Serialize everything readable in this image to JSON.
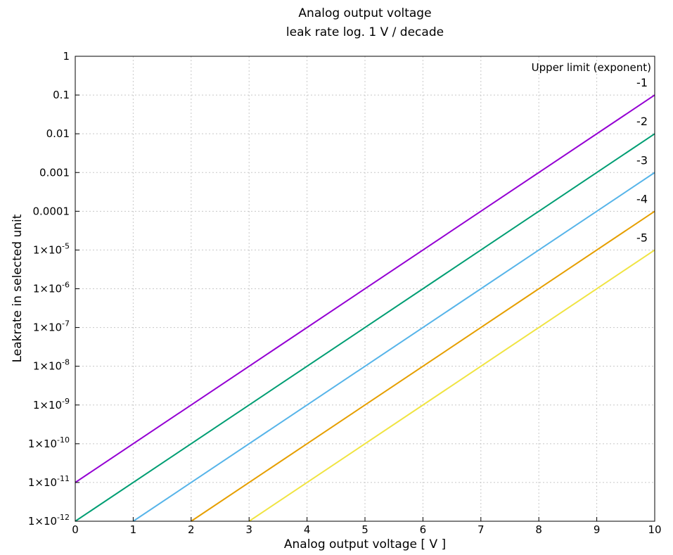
{
  "chart_data": {
    "type": "line",
    "title": "Analog output voltage",
    "subtitle": "leak rate log. 1 V / decade",
    "xlabel": "Analog output voltage [ V ]",
    "ylabel": "Leakrate in selected unit",
    "xlim": [
      0,
      10
    ],
    "ylim": [
      1e-12,
      1
    ],
    "y_scale": "log",
    "grid": true,
    "x_ticks": [
      0,
      1,
      2,
      3,
      4,
      5,
      6,
      7,
      8,
      9,
      10
    ],
    "x_tick_labels": [
      "0",
      "1",
      "2",
      "3",
      "4",
      "5",
      "6",
      "7",
      "8",
      "9",
      "10"
    ],
    "y_ticks": [
      {
        "value": 1,
        "label": "1"
      },
      {
        "value": 0.1,
        "label": "0.1"
      },
      {
        "value": 0.01,
        "label": "0.01"
      },
      {
        "value": 0.001,
        "label": "0.001"
      },
      {
        "value": 0.0001,
        "label": "0.0001"
      },
      {
        "value": 1e-05,
        "mantissa": "1×10",
        "exp": "-5"
      },
      {
        "value": 1e-06,
        "mantissa": "1×10",
        "exp": "-6"
      },
      {
        "value": 1e-07,
        "mantissa": "1×10",
        "exp": "-7"
      },
      {
        "value": 1e-08,
        "mantissa": "1×10",
        "exp": "-8"
      },
      {
        "value": 1e-09,
        "mantissa": "1×10",
        "exp": "-9"
      },
      {
        "value": 1e-10,
        "mantissa": "1×10",
        "exp": "-10"
      },
      {
        "value": 1e-11,
        "mantissa": "1×10",
        "exp": "-11"
      },
      {
        "value": 1e-12,
        "mantissa": "1×10",
        "exp": "-12"
      }
    ],
    "legend_title": "Upper limit (exponent)",
    "legend_placement": "top-right",
    "series": [
      {
        "name": "-1",
        "color": "#9400d3",
        "x": [
          0,
          10
        ],
        "y": [
          1e-11,
          0.1
        ]
      },
      {
        "name": "-2",
        "color": "#009e73",
        "x": [
          0,
          10
        ],
        "y": [
          1e-12,
          0.01
        ]
      },
      {
        "name": "-3",
        "color": "#56b4e9",
        "x": [
          1,
          10
        ],
        "y": [
          1e-12,
          0.001
        ]
      },
      {
        "name": "-4",
        "color": "#e69f00",
        "x": [
          2,
          10
        ],
        "y": [
          1e-12,
          0.0001
        ]
      },
      {
        "name": "-5",
        "color": "#f0e442",
        "x": [
          3,
          10
        ],
        "y": [
          1e-12,
          1e-05
        ]
      }
    ]
  }
}
